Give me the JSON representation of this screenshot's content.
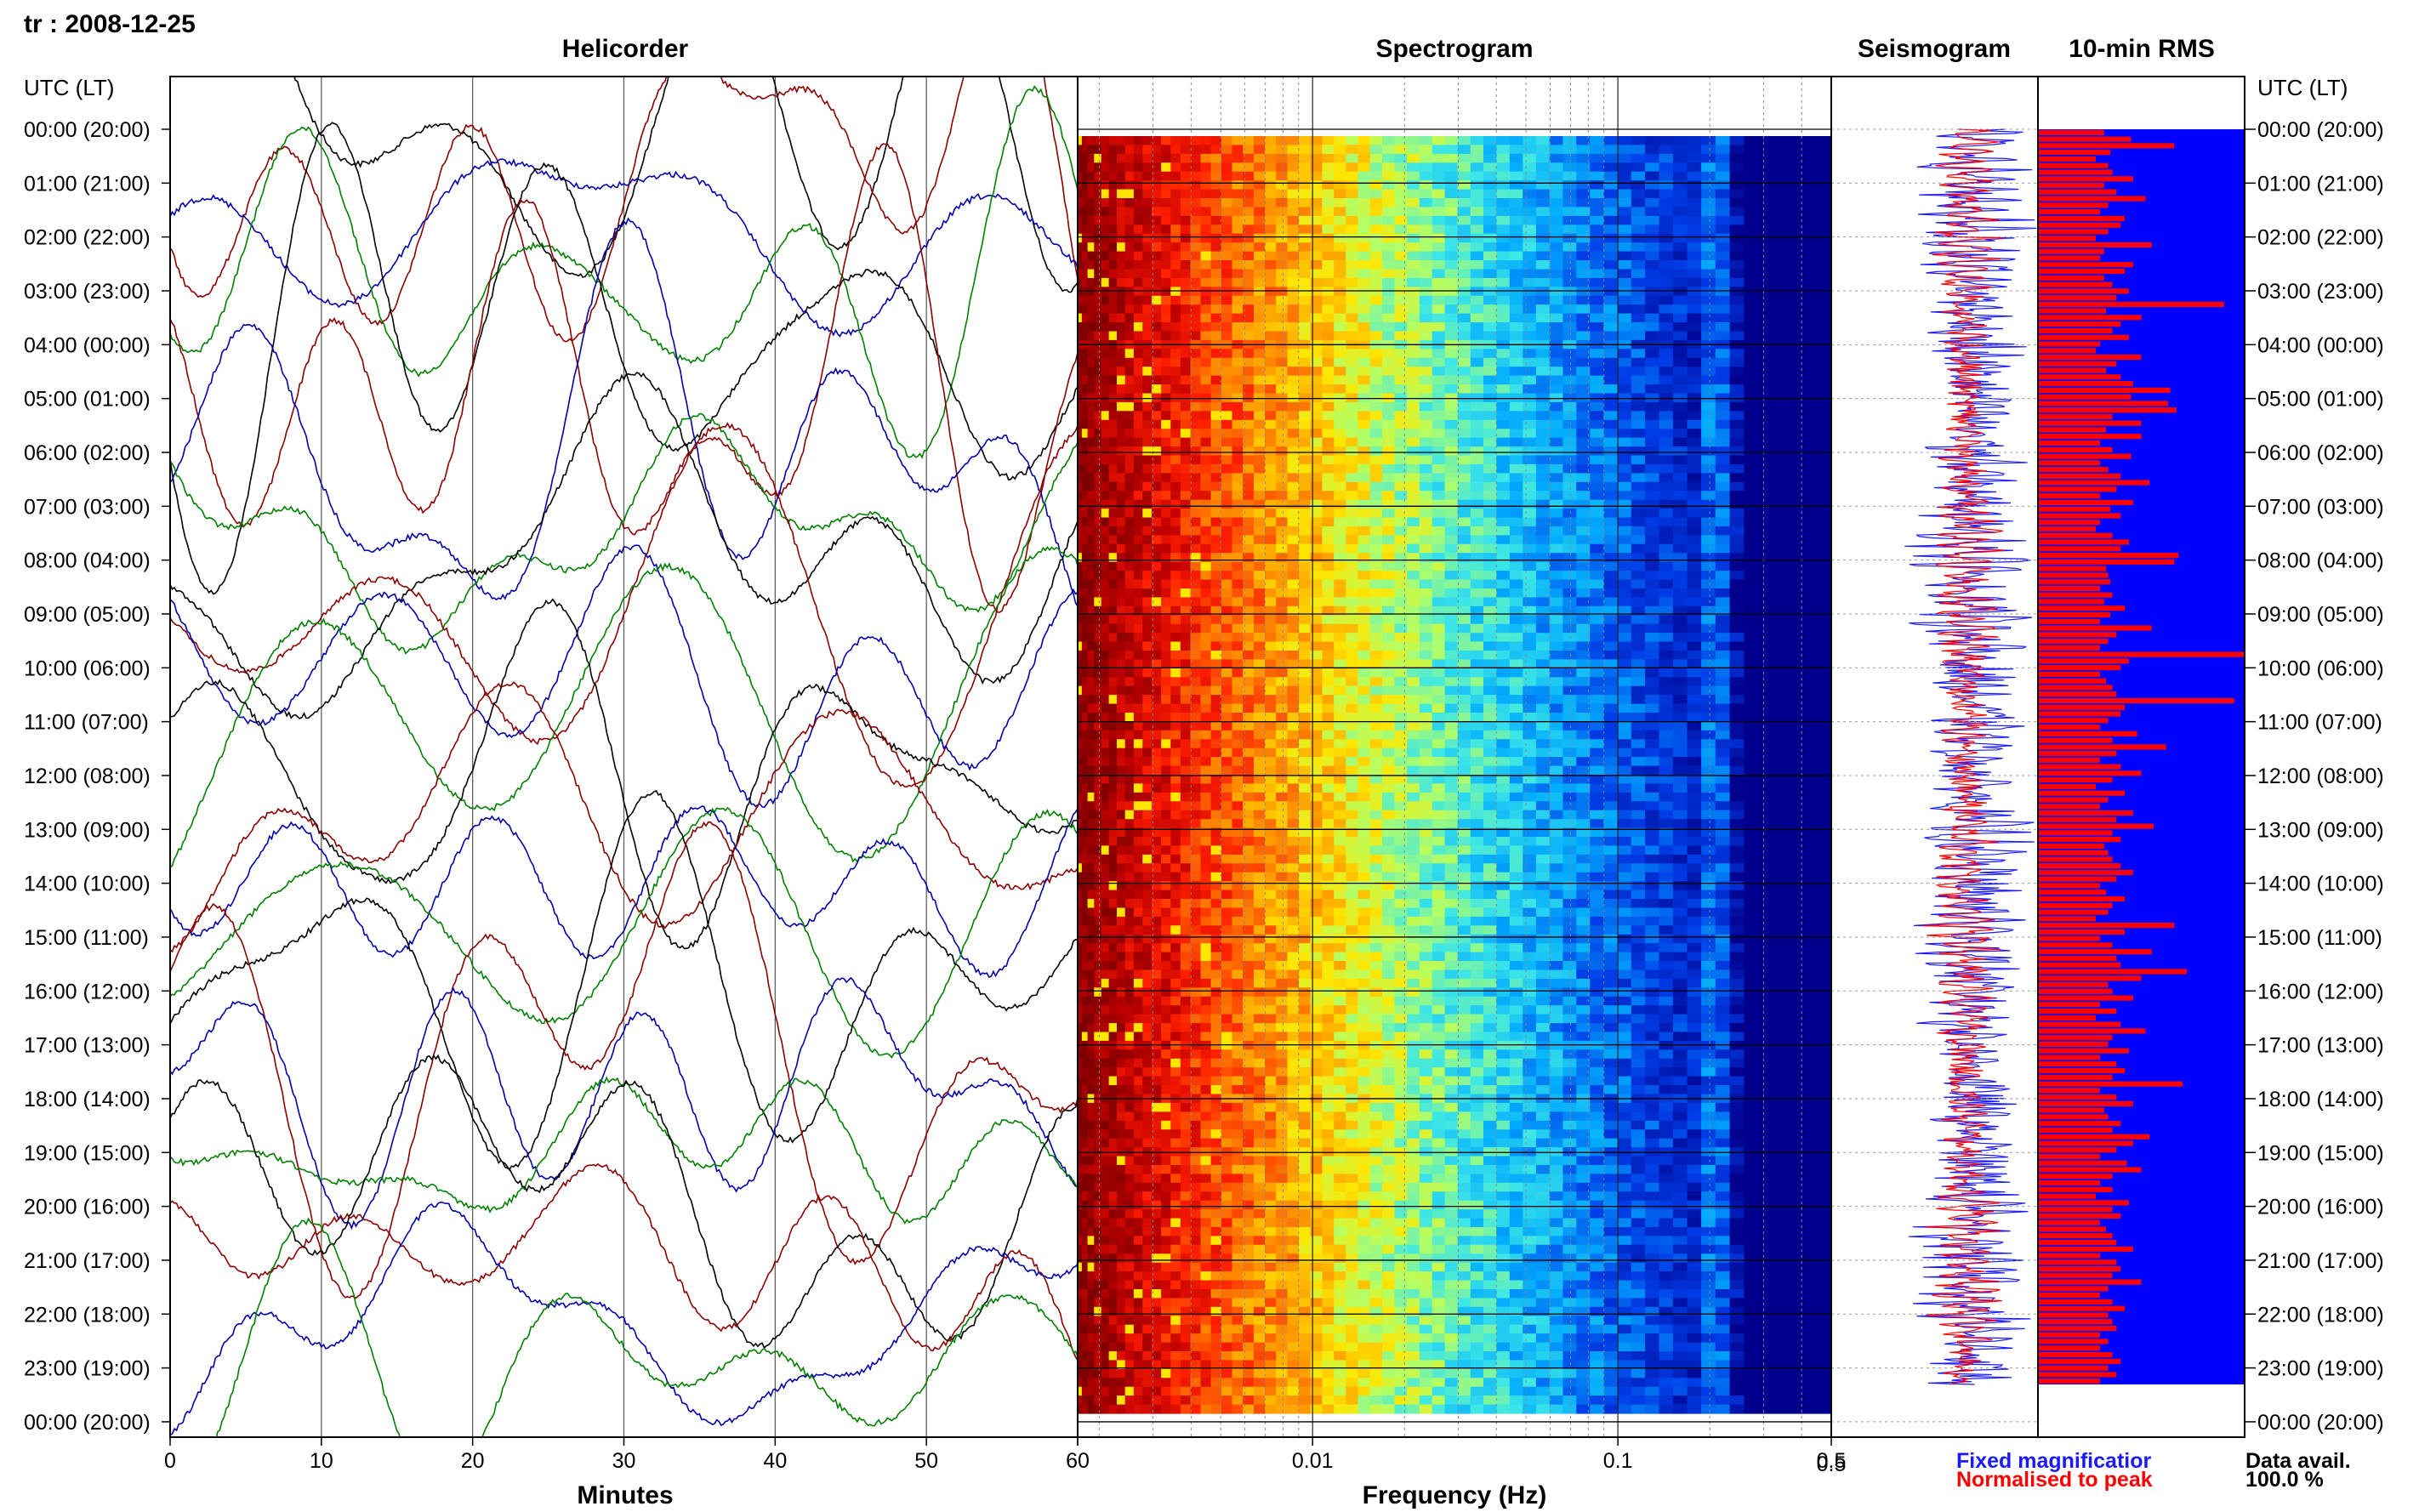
{
  "header": {
    "station_date": "tr : 2008-12-25",
    "utc_lt_left": "UTC (LT)",
    "utc_lt_right": "UTC (LT)"
  },
  "panels": {
    "helicorder": "Helicorder",
    "spectrogram": "Spectrogram",
    "seismogram": "Seismogram",
    "rms": "10-min RMS"
  },
  "axes": {
    "minutes_label": "Minutes",
    "frequency_label": "Frequency (Hz)",
    "minutes_ticks": [
      "0",
      "10",
      "20",
      "30",
      "40",
      "50",
      "60"
    ],
    "frequency_ticks": [
      "0.01",
      "0.1",
      "0.5"
    ],
    "seismogram_left_tick": "0.5"
  },
  "time_labels": [
    "00:00 (20:00)",
    "01:00 (21:00)",
    "02:00 (22:00)",
    "03:00 (23:00)",
    "04:00 (00:00)",
    "05:00 (01:00)",
    "06:00 (02:00)",
    "07:00 (03:00)",
    "08:00 (04:00)",
    "09:00 (05:00)",
    "10:00 (06:00)",
    "11:00 (07:00)",
    "12:00 (08:00)",
    "13:00 (09:00)",
    "14:00 (10:00)",
    "15:00 (11:00)",
    "16:00 (12:00)",
    "17:00 (13:00)",
    "18:00 (14:00)",
    "19:00 (15:00)",
    "20:00 (16:00)",
    "21:00 (17:00)",
    "22:00 (18:00)",
    "23:00 (19:00)",
    "00:00 (20:00)"
  ],
  "legend": {
    "fixed": "Fixed magnificatior",
    "normalised": "Normalised to peak",
    "data_avail_label": "Data avail.",
    "data_avail_value": "100.0 %"
  },
  "colors": {
    "helicorder_traces": [
      "#000000",
      "#8b0000",
      "#0000aa",
      "#008000"
    ],
    "seismogram_fixed": "#1a1aff",
    "seismogram_norm": "#ff0000",
    "rms_background": "#0000ff",
    "rms_bar": "#ff0000",
    "spectrogram_colormap": [
      "#7f0000",
      "#ff0000",
      "#ff8000",
      "#ffff00",
      "#80ff80",
      "#00ffff",
      "#0080ff",
      "#0000ff",
      "#000080"
    ]
  },
  "chart_data": [
    {
      "type": "line",
      "title": "Helicorder",
      "xlabel": "Minutes",
      "xlim": [
        0,
        60
      ],
      "rows": 24
    },
    {
      "type": "heatmap",
      "title": "Spectrogram",
      "xlabel": "Frequency (Hz)",
      "xscale": "log",
      "xlim": [
        0.0017,
        0.5
      ]
    },
    {
      "type": "line",
      "title": "Seismogram",
      "series": [
        {
          "name": "Fixed magnificatior"
        },
        {
          "name": "Normalised to peak"
        }
      ]
    },
    {
      "type": "bar",
      "title": "10-min RMS",
      "values": [
        0.32,
        0.45,
        0.66,
        0.35,
        0.28,
        0.34,
        0.36,
        0.46,
        0.32,
        0.38,
        0.52,
        0.34,
        0.3,
        0.42,
        0.4,
        0.34,
        0.28,
        0.55,
        0.32,
        0.3,
        0.46,
        0.42,
        0.32,
        0.36,
        0.44,
        0.38,
        0.9,
        0.33,
        0.5,
        0.4,
        0.36,
        0.44,
        0.3,
        0.28,
        0.5,
        0.38,
        0.33,
        0.4,
        0.46,
        0.64,
        0.45,
        0.63,
        0.67,
        0.36,
        0.5,
        0.33,
        0.5,
        0.3,
        0.36,
        0.45,
        0.3,
        0.34,
        0.4,
        0.54,
        0.38,
        0.3,
        0.46,
        0.35,
        0.4,
        0.3,
        0.28,
        0.36,
        0.44,
        0.4,
        0.68,
        0.66,
        0.33,
        0.34,
        0.35,
        0.3,
        0.36,
        0.32,
        0.42,
        0.35,
        0.3,
        0.55,
        0.38,
        0.34,
        0.3,
        1.0,
        0.44,
        0.4,
        0.3,
        0.33,
        0.36,
        0.38,
        0.95,
        0.42,
        0.4,
        0.34,
        0.3,
        0.48,
        0.36,
        0.62,
        0.38,
        0.3,
        0.4,
        0.5,
        0.36,
        0.28,
        0.42,
        0.34,
        0.3,
        0.46,
        0.38,
        0.56,
        0.36,
        0.4,
        0.32,
        0.34,
        0.36,
        0.4,
        0.46,
        0.38,
        0.3,
        0.33,
        0.42,
        0.36,
        0.34,
        0.28,
        0.66,
        0.42,
        0.3,
        0.36,
        0.55,
        0.38,
        0.4,
        0.72,
        0.5,
        0.34,
        0.36,
        0.46,
        0.3,
        0.38,
        0.28,
        0.4,
        0.52,
        0.36,
        0.34,
        0.44,
        0.3,
        0.38,
        0.42,
        0.36,
        0.7,
        0.3,
        0.38,
        0.46,
        0.32,
        0.34,
        0.4,
        0.36,
        0.54,
        0.46,
        0.38,
        0.3,
        0.43,
        0.5,
        0.36,
        0.3,
        0.36,
        0.28,
        0.44,
        0.36,
        0.4,
        0.3,
        0.33,
        0.36,
        0.38,
        0.46,
        0.3,
        0.38,
        0.4,
        0.36,
        0.5,
        0.34,
        0.3,
        0.36,
        0.42,
        0.34,
        0.36,
        0.38,
        0.3,
        0.34,
        0.3,
        0.36,
        0.4,
        0.34,
        0.38,
        0.3
      ]
    }
  ]
}
